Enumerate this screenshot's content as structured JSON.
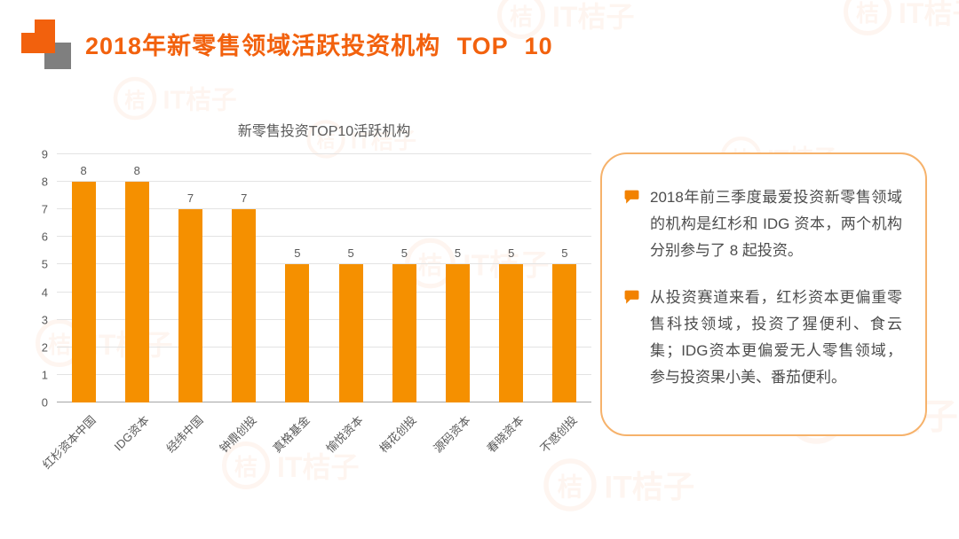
{
  "page": {
    "title": "2018年新零售领域活跃投资机构 TOP 10",
    "watermark": "IT桔子",
    "watermark_glyph": "桔"
  },
  "chart_data": {
    "type": "bar",
    "title": "新零售投资TOP10活跃机构",
    "categories": [
      "红杉资本中国",
      "IDG资本",
      "经纬中国",
      "钟鼎创投",
      "真格基金",
      "愉悦资本",
      "梅花创投",
      "源码资本",
      "春晓资本",
      "不惑创投"
    ],
    "values": [
      8,
      8,
      7,
      7,
      5,
      5,
      5,
      5,
      5,
      5
    ],
    "xlabel": "",
    "ylabel": "",
    "ylim": [
      0,
      9
    ],
    "ytick_step": 1,
    "grid": true,
    "legend": "none"
  },
  "callout": {
    "points": [
      "2018年前三季度最爱投资新零售领域的机构是红杉和 IDG 资本，两个机构分别参与了 8 起投资。",
      "从投资赛道来看，红杉资本更偏重零售科技领域，投资了猩便利、食云集；IDG资本更偏爱无人零售领域，参与投资果小美、番茄便利。"
    ]
  },
  "colors": {
    "accent": "#F2610D",
    "bar": "#F59000",
    "border": "#F6B26B",
    "bullet": "#F28200",
    "text": "#595959",
    "grid": "#E3E3E3",
    "axis": "#A6A6A6",
    "gray": "#7F7F7F"
  }
}
